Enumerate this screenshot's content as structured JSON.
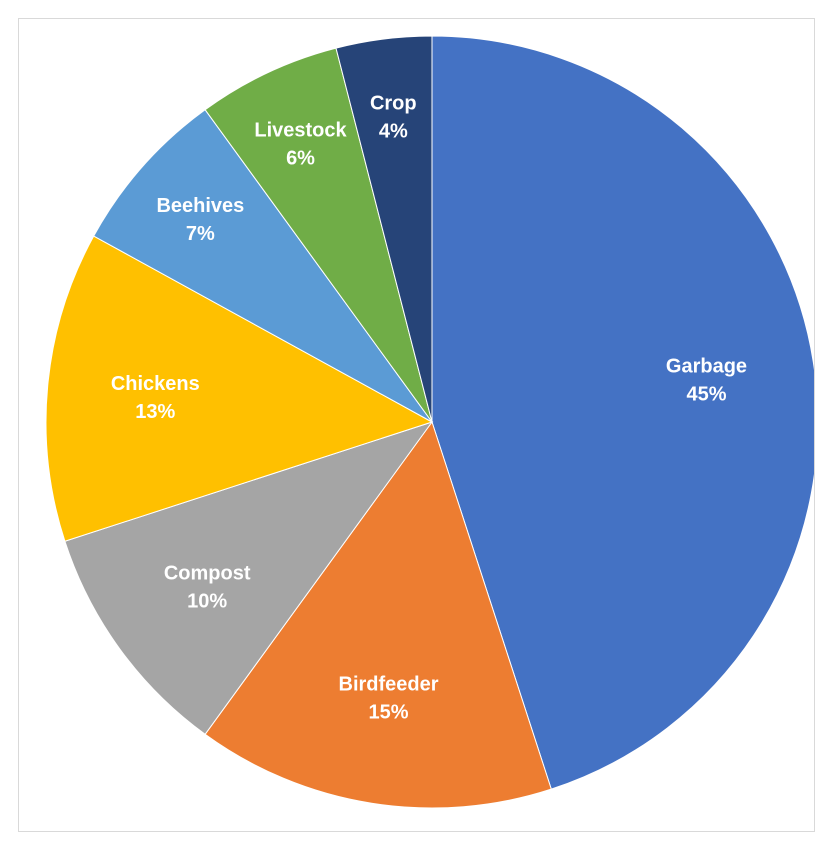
{
  "chart_data": {
    "type": "pie",
    "title": "",
    "slices": [
      {
        "category": "Garbage",
        "value": 45,
        "label": "45%",
        "color": "#4472C4"
      },
      {
        "category": "Birdfeeder",
        "value": 15,
        "label": "15%",
        "color": "#ED7D31"
      },
      {
        "category": "Compost",
        "value": 10,
        "label": "10%",
        "color": "#A5A5A5"
      },
      {
        "category": "Chickens",
        "value": 13,
        "label": "13%",
        "color": "#FFC000"
      },
      {
        "category": "Beehives",
        "value": 7,
        "label": "7%",
        "color": "#5B9BD5"
      },
      {
        "category": "Livestock",
        "value": 6,
        "label": "6%",
        "color": "#70AD47"
      },
      {
        "category": "Crop",
        "value": 4,
        "label": "4%",
        "color": "#264478"
      }
    ],
    "start_angle": "12 o'clock",
    "direction": "clockwise",
    "legend": "none"
  }
}
